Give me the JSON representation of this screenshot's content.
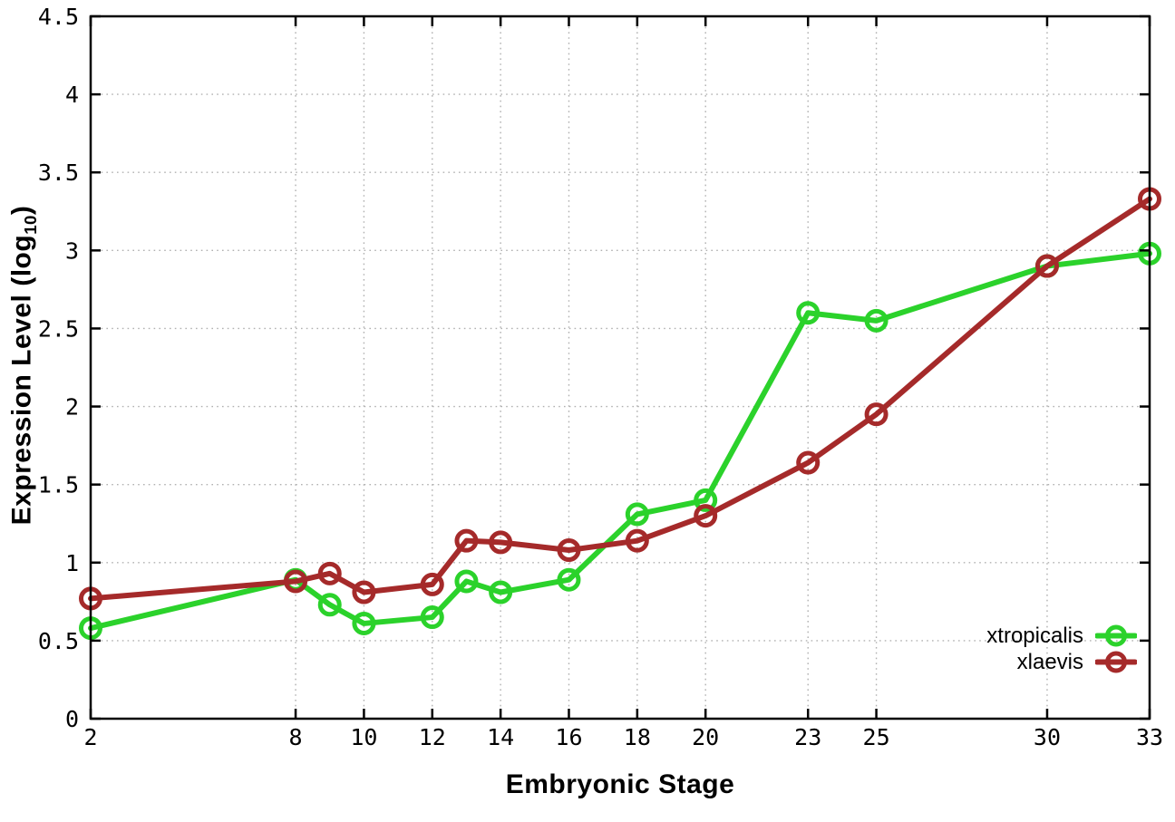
{
  "figure": {
    "background": "#ffffff"
  },
  "chart_data": {
    "type": "line",
    "title": "",
    "xlabel": "Embryonic Stage",
    "ylabel": "Expression Level (log10)",
    "ylabel_parts": {
      "prefix": "Expression Level (log",
      "sub": "10",
      "suffix": ")"
    },
    "xlim": [
      2,
      33
    ],
    "ylim": [
      0,
      4.5
    ],
    "x_ticks": [
      2,
      8,
      10,
      12,
      14,
      16,
      18,
      20,
      23,
      25,
      30,
      33
    ],
    "y_ticks": [
      0,
      0.5,
      1,
      1.5,
      2,
      2.5,
      3,
      3.5,
      4,
      4.5
    ],
    "grid": true,
    "legend_position": "bottom-right",
    "x": [
      2,
      8,
      9,
      10,
      12,
      13,
      14,
      16,
      18,
      20,
      23,
      25,
      30,
      33
    ],
    "series": [
      {
        "name": "xtropicalis",
        "color": "#2bd22b",
        "marker": "open-circle",
        "values": [
          0.58,
          0.89,
          0.73,
          0.61,
          0.65,
          0.88,
          0.81,
          0.89,
          1.31,
          1.4,
          2.6,
          2.55,
          2.9,
          2.98
        ]
      },
      {
        "name": "xlaevis",
        "color": "#a52a2a",
        "marker": "open-circle",
        "values": [
          0.77,
          0.88,
          0.93,
          0.81,
          0.86,
          1.14,
          1.13,
          1.08,
          1.14,
          1.3,
          1.64,
          1.95,
          2.9,
          3.33
        ]
      }
    ],
    "style": {
      "axis_color": "#000000",
      "grid_color": "#b0b0b0",
      "tick_label_color": "#000000",
      "line_width": 6,
      "marker_radius": 10.5,
      "marker_stroke": 5
    }
  }
}
